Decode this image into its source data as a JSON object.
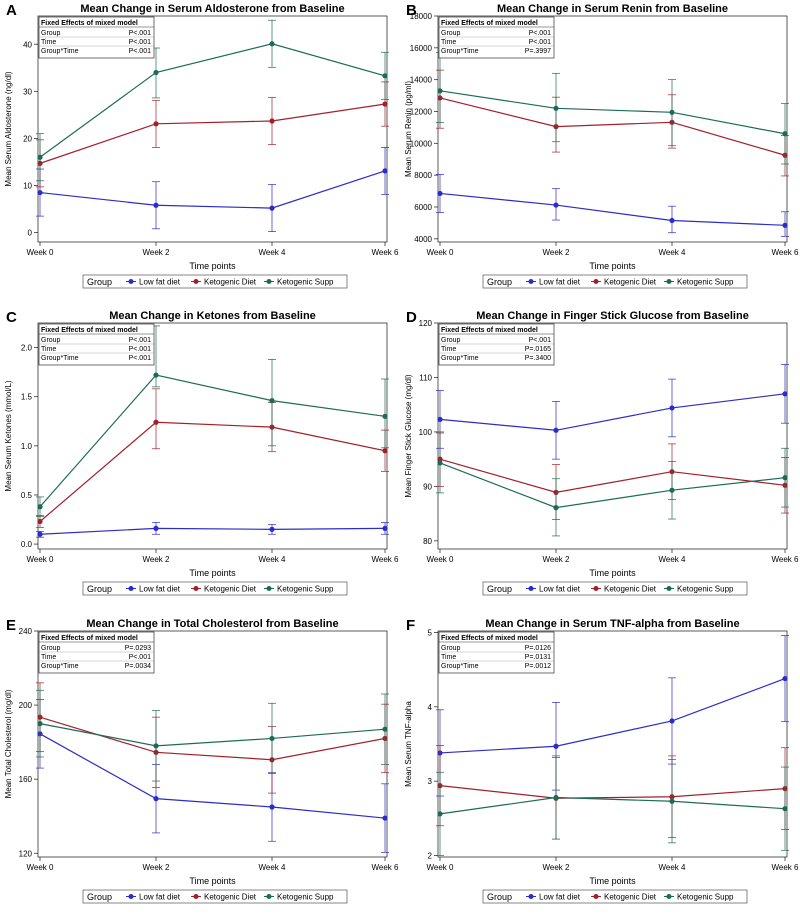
{
  "series_names": [
    "Low fat diet",
    "Ketogenic Diet",
    "Ketogenic Supp"
  ],
  "series_colors": [
    "#2c2cc8",
    "#a3202b",
    "#1d6b57"
  ],
  "legend_label": "Group",
  "fixed_effects_title": "Fixed Effects of mixed model",
  "fixed_effects_rows": [
    "Group",
    "Time",
    "Group*Time"
  ],
  "chart_data": [
    {
      "panel": "A",
      "type": "line",
      "title": "Mean Change in Serum Aldosterone from Baseline",
      "xlabel": "Time points",
      "ylabel": "Mean Serum Aldosterone (ng/dl)",
      "x": [
        "Week 0",
        "Week 2",
        "Week 4",
        "Week 6"
      ],
      "ylim": [
        -2,
        46
      ],
      "yticks": [
        "0",
        "10",
        "20",
        "30",
        "40"
      ],
      "ytick_values": [
        0,
        10,
        20,
        30,
        40
      ],
      "stats": [
        {
          "p": "P<.001"
        },
        {
          "p": "P<.001"
        },
        {
          "p": "P<.001"
        }
      ],
      "series": [
        {
          "name": "Low fat diet",
          "values": [
            8.5,
            5.8,
            5.2,
            13.1
          ],
          "lower": [
            3.5,
            0.8,
            0.2,
            8.1
          ],
          "upper": [
            13.5,
            10.8,
            10.2,
            18.1
          ]
        },
        {
          "name": "Ketogenic Diet",
          "values": [
            14.7,
            23.1,
            23.7,
            27.3
          ],
          "lower": [
            9.7,
            18.1,
            18.7,
            22.6
          ],
          "upper": [
            19.7,
            28.1,
            28.7,
            32.0
          ]
        },
        {
          "name": "Ketogenic Supp",
          "values": [
            16.0,
            34.0,
            40.1,
            33.3
          ],
          "lower": [
            11.0,
            28.6,
            35.1,
            28.3
          ],
          "upper": [
            21.0,
            39.2,
            45.1,
            38.3
          ]
        }
      ]
    },
    {
      "panel": "B",
      "type": "line",
      "title": "Mean Change in  Serum Renin  from Baseline",
      "xlabel": "Time points",
      "ylabel": "Mean Serum Renin (pg/ml)",
      "x": [
        "Week 0",
        "Week 2",
        "Week 4",
        "Week 6"
      ],
      "ylim": [
        3800,
        18000
      ],
      "yticks": [
        "4000",
        "6000",
        "8000",
        "10000",
        "12000",
        "14000",
        "16000",
        "18000"
      ],
      "ytick_values": [
        4000,
        6000,
        8000,
        10000,
        12000,
        14000,
        16000,
        18000
      ],
      "stats": [
        {
          "p": "P<.001"
        },
        {
          "p": "P<.001"
        },
        {
          "p": "P=.3997"
        }
      ],
      "series": [
        {
          "name": "Low fat diet",
          "values": [
            6850,
            6120,
            5150,
            4850
          ],
          "lower": [
            5650,
            5180,
            4380,
            4150
          ],
          "upper": [
            8050,
            7150,
            6050,
            5700
          ]
        },
        {
          "name": "Ketogenic Diet",
          "values": [
            12850,
            11050,
            11320,
            9250
          ],
          "lower": [
            10950,
            9450,
            9700,
            7950
          ],
          "upper": [
            14600,
            12900,
            13050,
            10500
          ]
        },
        {
          "name": "Ketogenic Supp",
          "values": [
            13300,
            12200,
            11950,
            10600
          ],
          "lower": [
            11300,
            10100,
            9850,
            8700
          ],
          "upper": [
            15700,
            14400,
            14000,
            12500
          ]
        }
      ]
    },
    {
      "panel": "C",
      "type": "line",
      "title": "Mean Change in Ketones from Baseline",
      "xlabel": "Time points",
      "ylabel": "Mean Serum Ketones (mmol/L)",
      "x": [
        "Week 0",
        "Week 2",
        "Week 4",
        "Week 6"
      ],
      "ylim": [
        -0.05,
        2.25
      ],
      "yticks": [
        "0.0",
        "0.5",
        "1.0",
        "1.5",
        "2.0"
      ],
      "ytick_values": [
        0,
        0.5,
        1.0,
        1.5,
        2.0
      ],
      "stats": [
        {
          "p": "P<.001"
        },
        {
          "p": "P<.001"
        },
        {
          "p": "P<.001"
        }
      ],
      "series": [
        {
          "name": "Low fat diet",
          "values": [
            0.1,
            0.16,
            0.15,
            0.16
          ],
          "lower": [
            0.07,
            0.1,
            0.1,
            0.1
          ],
          "upper": [
            0.13,
            0.22,
            0.2,
            0.22
          ]
        },
        {
          "name": "Ketogenic Diet",
          "values": [
            0.23,
            1.24,
            1.19,
            0.95
          ],
          "lower": [
            0.17,
            0.97,
            0.94,
            0.74
          ],
          "upper": [
            0.29,
            1.58,
            1.44,
            1.16
          ]
        },
        {
          "name": "Ketogenic Supp",
          "values": [
            0.38,
            1.72,
            1.46,
            1.3
          ],
          "lower": [
            0.28,
            1.6,
            1.0,
            0.98
          ],
          "upper": [
            0.48,
            2.22,
            1.88,
            1.68
          ]
        }
      ]
    },
    {
      "panel": "D",
      "type": "line",
      "title": "Mean Change in Finger Stick Glucose from Baseline",
      "xlabel": "Time points",
      "ylabel": "Mean Finger Stick Glucose (mg/dl)",
      "x": [
        "Week 0",
        "Week 2",
        "Week 4",
        "Week 6"
      ],
      "ylim": [
        78.5,
        120
      ],
      "yticks": [
        "80",
        "90",
        "100",
        "110",
        "120"
      ],
      "ytick_values": [
        80,
        90,
        100,
        110,
        120
      ],
      "stats": [
        {
          "p": "P<.001"
        },
        {
          "p": "P=.0165"
        },
        {
          "p": "P=.3400"
        }
      ],
      "series": [
        {
          "name": "Low fat diet",
          "values": [
            102.3,
            100.3,
            104.4,
            107.0
          ],
          "lower": [
            97.0,
            95.0,
            99.1,
            101.6
          ],
          "upper": [
            107.6,
            105.6,
            109.7,
            112.4
          ]
        },
        {
          "name": "Ketogenic Diet",
          "values": [
            95.0,
            88.9,
            92.7,
            90.2
          ],
          "lower": [
            90.0,
            83.9,
            87.6,
            85.1
          ],
          "upper": [
            100.0,
            94.0,
            97.8,
            95.3
          ]
        },
        {
          "name": "Ketogenic Supp",
          "values": [
            94.3,
            86.1,
            89.3,
            91.6
          ],
          "lower": [
            88.8,
            80.9,
            84.0,
            86.2
          ],
          "upper": [
            99.8,
            91.4,
            94.6,
            97.0
          ]
        }
      ]
    },
    {
      "panel": "E",
      "type": "line",
      "title": "Mean Change in Total Cholesterol from Baseline",
      "xlabel": "Time points",
      "ylabel": "Mean Total Cholesterol (mg/dl)",
      "x": [
        "Week 0",
        "Week 2",
        "Week 4",
        "Week 6"
      ],
      "ylim": [
        118,
        240
      ],
      "yticks": [
        "120",
        "160",
        "200",
        "240"
      ],
      "ytick_values": [
        120,
        160,
        200,
        240
      ],
      "stats": [
        {
          "p": "P=.0293"
        },
        {
          "p": "P<.001"
        },
        {
          "p": "P=.0034"
        }
      ],
      "series": [
        {
          "name": "Low fat diet",
          "values": [
            184.5,
            149.5,
            145.0,
            139.0
          ],
          "lower": [
            166.0,
            131.0,
            126.5,
            120.5
          ],
          "upper": [
            203.0,
            168.0,
            163.5,
            157.5
          ]
        },
        {
          "name": "Ketogenic Diet",
          "values": [
            193.5,
            174.5,
            170.5,
            182.0
          ],
          "lower": [
            175.0,
            155.5,
            152.5,
            163.5
          ],
          "upper": [
            212.0,
            193.5,
            188.5,
            200.5
          ]
        },
        {
          "name": "Ketogenic Supp",
          "values": [
            190.0,
            178.0,
            182.0,
            187.0
          ],
          "lower": [
            172.0,
            159.0,
            163.0,
            168.0
          ],
          "upper": [
            208.0,
            197.0,
            201.0,
            206.0
          ]
        }
      ]
    },
    {
      "panel": "F",
      "type": "line",
      "title": "Mean Change in Serum TNF-alpha from Baseline",
      "xlabel": "Time points",
      "ylabel": "Mean Serum TNF-alpha",
      "x": [
        "Week 0",
        "Week 2",
        "Week 4",
        "Week 6"
      ],
      "ylim": [
        1.98,
        5.02
      ],
      "yticks": [
        "2",
        "3",
        "4",
        "5"
      ],
      "ytick_values": [
        2,
        3,
        4,
        5
      ],
      "stats": [
        {
          "p": "P=.0126"
        },
        {
          "p": "P=.0131"
        },
        {
          "p": "P=.0012"
        }
      ],
      "series": [
        {
          "name": "Low fat diet",
          "values": [
            3.38,
            3.47,
            3.81,
            4.38
          ],
          "lower": [
            2.8,
            2.88,
            3.23,
            3.8
          ],
          "upper": [
            3.96,
            4.06,
            4.39,
            4.96
          ]
        },
        {
          "name": "Ketogenic Diet",
          "values": [
            2.94,
            2.77,
            2.79,
            2.9
          ],
          "lower": [
            2.4,
            2.22,
            2.24,
            2.35
          ],
          "upper": [
            3.48,
            3.32,
            3.34,
            3.45
          ]
        },
        {
          "name": "Ketogenic Supp",
          "values": [
            2.56,
            2.78,
            2.73,
            2.63
          ],
          "lower": [
            2.0,
            2.22,
            2.17,
            2.07
          ],
          "upper": [
            3.12,
            3.34,
            3.29,
            3.19
          ]
        }
      ]
    }
  ]
}
